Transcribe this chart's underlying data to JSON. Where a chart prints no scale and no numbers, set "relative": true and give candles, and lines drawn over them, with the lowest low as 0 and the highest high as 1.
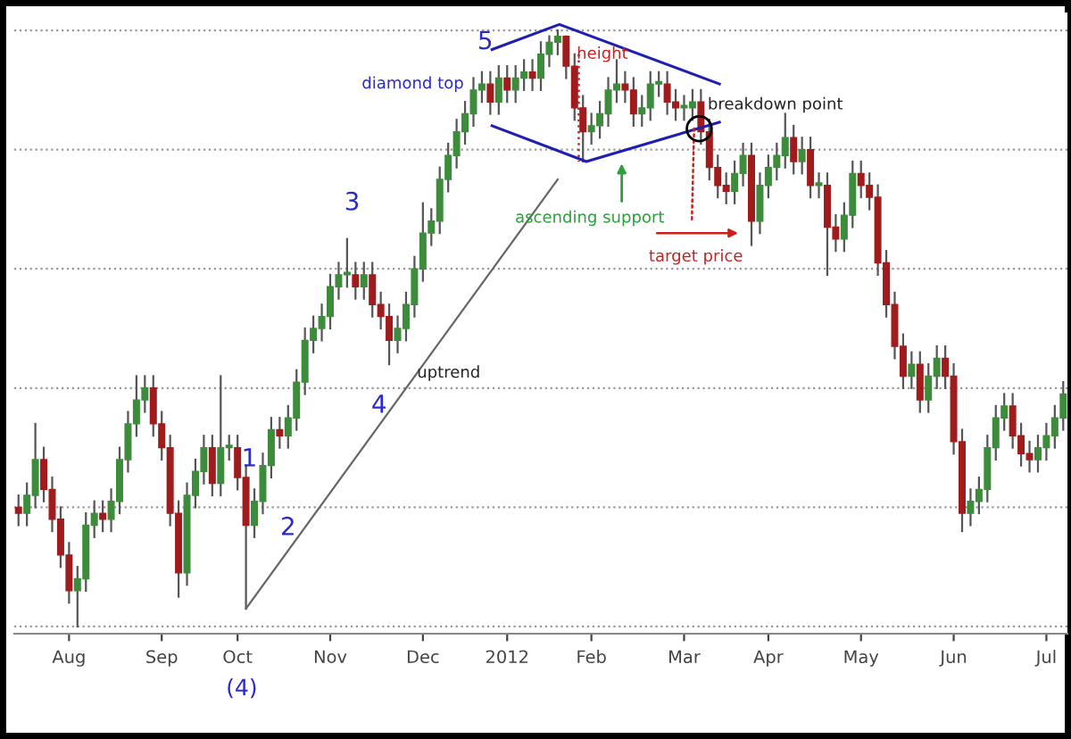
{
  "chart_data": {
    "type": "candlestick",
    "relative": true,
    "grid": "y",
    "tick_labels": "x",
    "categories": [
      null,
      null,
      null,
      null,
      null,
      null,
      "Aug",
      null,
      null,
      null,
      null,
      null,
      null,
      null,
      null,
      null,
      null,
      "Sep",
      null,
      null,
      null,
      null,
      null,
      null,
      null,
      null,
      "Oct",
      null,
      null,
      null,
      null,
      null,
      null,
      null,
      null,
      null,
      null,
      "Nov",
      null,
      null,
      null,
      null,
      null,
      null,
      null,
      null,
      null,
      null,
      "Dec",
      null,
      null,
      null,
      null,
      null,
      null,
      null,
      null,
      null,
      "2012",
      null,
      null,
      null,
      null,
      null,
      null,
      null,
      null,
      null,
      "Feb",
      null,
      null,
      null,
      null,
      null,
      null,
      null,
      null,
      null,
      null,
      "Mar",
      null,
      null,
      null,
      null,
      null,
      null,
      null,
      null,
      null,
      "Apr",
      null,
      null,
      null,
      null,
      null,
      null,
      null,
      null,
      null,
      null,
      "May",
      null,
      null,
      null,
      null,
      null,
      null,
      null,
      null,
      null,
      null,
      "Jun",
      null,
      null,
      null,
      null,
      null,
      null,
      null,
      null,
      null,
      null,
      "Jul",
      null,
      null
    ],
    "ohlc": [
      [
        0.2,
        0.22,
        0.17,
        0.19
      ],
      [
        0.19,
        0.24,
        0.17,
        0.22
      ],
      [
        0.22,
        0.34,
        0.2,
        0.28
      ],
      [
        0.28,
        0.3,
        0.21,
        0.23
      ],
      [
        0.23,
        0.25,
        0.16,
        0.18
      ],
      [
        0.18,
        0.2,
        0.1,
        0.12
      ],
      [
        0.12,
        0.14,
        0.04,
        0.06
      ],
      [
        0.06,
        0.1,
        0,
        0.08
      ],
      [
        0.08,
        0.19,
        0.06,
        0.17
      ],
      [
        0.17,
        0.21,
        0.15,
        0.19
      ],
      [
        0.19,
        0.21,
        0.16,
        0.18
      ],
      [
        0.18,
        0.23,
        0.16,
        0.21
      ],
      [
        0.21,
        0.3,
        0.19,
        0.28
      ],
      [
        0.28,
        0.36,
        0.26,
        0.34
      ],
      [
        0.34,
        0.42,
        0.32,
        0.38
      ],
      [
        0.38,
        0.42,
        0.36,
        0.4
      ],
      [
        0.4,
        0.42,
        0.32,
        0.34
      ],
      [
        0.34,
        0.36,
        0.28,
        0.3
      ],
      [
        0.3,
        0.32,
        0.17,
        0.19
      ],
      [
        0.19,
        0.21,
        0.05,
        0.09
      ],
      [
        0.09,
        0.24,
        0.07,
        0.22
      ],
      [
        0.22,
        0.28,
        0.2,
        0.26
      ],
      [
        0.26,
        0.32,
        0.24,
        0.3
      ],
      [
        0.3,
        0.32,
        0.22,
        0.24
      ],
      [
        0.24,
        0.42,
        0.22,
        0.3
      ],
      [
        0.3,
        0.32,
        0.28,
        0.3
      ],
      [
        0.3,
        0.32,
        0.23,
        0.25
      ],
      [
        0.25,
        0.27,
        0.03,
        0.17
      ],
      [
        0.17,
        0.23,
        0.15,
        0.21
      ],
      [
        0.21,
        0.29,
        0.19,
        0.27
      ],
      [
        0.27,
        0.35,
        0.25,
        0.33
      ],
      [
        0.33,
        0.35,
        0.3,
        0.32
      ],
      [
        0.32,
        0.37,
        0.3,
        0.35
      ],
      [
        0.35,
        0.43,
        0.33,
        0.41
      ],
      [
        0.41,
        0.5,
        0.39,
        0.48
      ],
      [
        0.48,
        0.52,
        0.46,
        0.5
      ],
      [
        0.5,
        0.54,
        0.48,
        0.52
      ],
      [
        0.52,
        0.59,
        0.5,
        0.57
      ],
      [
        0.57,
        0.61,
        0.55,
        0.59
      ],
      [
        0.59,
        0.65,
        0.57,
        0.59
      ],
      [
        0.59,
        0.61,
        0.55,
        0.57
      ],
      [
        0.57,
        0.61,
        0.55,
        0.59
      ],
      [
        0.59,
        0.61,
        0.52,
        0.54
      ],
      [
        0.54,
        0.56,
        0.5,
        0.52
      ],
      [
        0.52,
        0.54,
        0.44,
        0.48
      ],
      [
        0.48,
        0.52,
        0.46,
        0.5
      ],
      [
        0.5,
        0.56,
        0.48,
        0.54
      ],
      [
        0.54,
        0.62,
        0.52,
        0.6
      ],
      [
        0.6,
        0.71,
        0.58,
        0.66
      ],
      [
        0.66,
        0.7,
        0.64,
        0.68
      ],
      [
        0.68,
        0.77,
        0.66,
        0.75
      ],
      [
        0.75,
        0.81,
        0.73,
        0.79
      ],
      [
        0.79,
        0.85,
        0.77,
        0.83
      ],
      [
        0.83,
        0.88,
        0.81,
        0.86
      ],
      [
        0.86,
        0.92,
        0.84,
        0.9
      ],
      [
        0.9,
        0.93,
        0.88,
        0.91
      ],
      [
        0.91,
        0.93,
        0.86,
        0.88
      ],
      [
        0.88,
        0.94,
        0.86,
        0.92
      ],
      [
        0.92,
        0.94,
        0.88,
        0.9
      ],
      [
        0.9,
        0.94,
        0.88,
        0.92
      ],
      [
        0.92,
        0.95,
        0.9,
        0.93
      ],
      [
        0.93,
        0.95,
        0.9,
        0.92
      ],
      [
        0.92,
        0.98,
        0.9,
        0.96
      ],
      [
        0.96,
        0.99,
        0.94,
        0.98
      ],
      [
        0.98,
        1,
        0.96,
        0.99
      ],
      [
        0.99,
        0.99,
        0.92,
        0.94
      ],
      [
        0.94,
        0.96,
        0.85,
        0.87
      ],
      [
        0.87,
        0.89,
        0.78,
        0.83
      ],
      [
        0.83,
        0.86,
        0.81,
        0.84
      ],
      [
        0.84,
        0.88,
        0.82,
        0.86
      ],
      [
        0.86,
        0.92,
        0.84,
        0.9
      ],
      [
        0.9,
        0.95,
        0.88,
        0.91
      ],
      [
        0.91,
        0.93,
        0.88,
        0.9
      ],
      [
        0.9,
        0.92,
        0.84,
        0.86
      ],
      [
        0.86,
        0.89,
        0.84,
        0.87
      ],
      [
        0.87,
        0.93,
        0.85,
        0.91
      ],
      [
        0.91,
        0.93,
        0.89,
        0.91
      ],
      [
        0.91,
        0.93,
        0.86,
        0.88
      ],
      [
        0.88,
        0.9,
        0.85,
        0.87
      ],
      [
        0.87,
        0.89,
        0.85,
        0.87
      ],
      [
        0.87,
        0.9,
        0.85,
        0.88
      ],
      [
        0.88,
        0.9,
        0.81,
        0.83
      ],
      [
        0.83,
        0.85,
        0.75,
        0.77
      ],
      [
        0.77,
        0.79,
        0.72,
        0.74
      ],
      [
        0.74,
        0.76,
        0.71,
        0.73
      ],
      [
        0.73,
        0.78,
        0.71,
        0.76
      ],
      [
        0.76,
        0.81,
        0.74,
        0.79
      ],
      [
        0.79,
        0.81,
        0.64,
        0.68
      ],
      [
        0.68,
        0.76,
        0.66,
        0.74
      ],
      [
        0.74,
        0.79,
        0.72,
        0.77
      ],
      [
        0.77,
        0.81,
        0.75,
        0.79
      ],
      [
        0.79,
        0.86,
        0.77,
        0.82
      ],
      [
        0.82,
        0.84,
        0.76,
        0.78
      ],
      [
        0.78,
        0.82,
        0.76,
        0.8
      ],
      [
        0.8,
        0.82,
        0.72,
        0.74
      ],
      [
        0.74,
        0.76,
        0.72,
        0.74
      ],
      [
        0.74,
        0.76,
        0.59,
        0.67
      ],
      [
        0.67,
        0.69,
        0.63,
        0.65
      ],
      [
        0.65,
        0.71,
        0.63,
        0.69
      ],
      [
        0.69,
        0.78,
        0.67,
        0.76
      ],
      [
        0.76,
        0.78,
        0.72,
        0.74
      ],
      [
        0.74,
        0.76,
        0.7,
        0.72
      ],
      [
        0.72,
        0.74,
        0.59,
        0.61
      ],
      [
        0.61,
        0.63,
        0.52,
        0.54
      ],
      [
        0.54,
        0.56,
        0.45,
        0.47
      ],
      [
        0.47,
        0.49,
        0.4,
        0.42
      ],
      [
        0.42,
        0.46,
        0.4,
        0.44
      ],
      [
        0.44,
        0.46,
        0.36,
        0.38
      ],
      [
        0.38,
        0.44,
        0.36,
        0.42
      ],
      [
        0.42,
        0.47,
        0.4,
        0.45
      ],
      [
        0.45,
        0.47,
        0.4,
        0.42
      ],
      [
        0.42,
        0.44,
        0.29,
        0.31
      ],
      [
        0.31,
        0.33,
        0.16,
        0.19
      ],
      [
        0.19,
        0.23,
        0.17,
        0.21
      ],
      [
        0.21,
        0.25,
        0.19,
        0.23
      ],
      [
        0.23,
        0.32,
        0.21,
        0.3
      ],
      [
        0.3,
        0.37,
        0.28,
        0.35
      ],
      [
        0.35,
        0.39,
        0.33,
        0.37
      ],
      [
        0.37,
        0.39,
        0.3,
        0.32
      ],
      [
        0.32,
        0.34,
        0.27,
        0.29
      ],
      [
        0.29,
        0.31,
        0.26,
        0.28
      ],
      [
        0.28,
        0.32,
        0.26,
        0.3
      ],
      [
        0.3,
        0.34,
        0.28,
        0.32
      ],
      [
        0.32,
        0.37,
        0.3,
        0.35
      ],
      [
        0.35,
        0.41,
        0.33,
        0.39
      ]
    ],
    "colors": [
      "#a01c1c",
      "#3c8c3c",
      "#3c8c3c",
      "#a01c1c",
      "#a01c1c",
      "#a01c1c",
      "#a01c1c",
      "#3c8c3c",
      "#3c8c3c",
      "#3c8c3c",
      "#a01c1c",
      "#3c8c3c",
      "#3c8c3c",
      "#3c8c3c",
      "#3c8c3c",
      "#3c8c3c",
      "#a01c1c",
      "#a01c1c",
      "#a01c1c",
      "#a01c1c",
      "#3c8c3c",
      "#3c8c3c",
      "#3c8c3c",
      "#a01c1c",
      "#3c8c3c",
      "#3c8c3c",
      "#a01c1c",
      "#a01c1c",
      "#3c8c3c",
      "#3c8c3c",
      "#3c8c3c",
      "#a01c1c",
      "#3c8c3c",
      "#3c8c3c",
      "#3c8c3c",
      "#3c8c3c",
      "#3c8c3c",
      "#3c8c3c",
      "#3c8c3c",
      "#3c8c3c",
      "#a01c1c",
      "#3c8c3c",
      "#a01c1c",
      "#a01c1c",
      "#a01c1c",
      "#3c8c3c",
      "#3c8c3c",
      "#3c8c3c",
      "#3c8c3c",
      "#3c8c3c",
      "#3c8c3c",
      "#3c8c3c",
      "#3c8c3c",
      "#3c8c3c",
      "#3c8c3c",
      "#3c8c3c",
      "#a01c1c",
      "#3c8c3c",
      "#a01c1c",
      "#3c8c3c",
      "#3c8c3c",
      "#a01c1c",
      "#3c8c3c",
      "#3c8c3c",
      "#3c8c3c",
      "#a01c1c",
      "#a01c1c",
      "#a01c1c",
      "#3c8c3c",
      "#3c8c3c",
      "#3c8c3c",
      "#3c8c3c",
      "#a01c1c",
      "#a01c1c",
      "#3c8c3c",
      "#3c8c3c",
      "#3c8c3c",
      "#a01c1c",
      "#a01c1c",
      "#3c8c3c",
      "#3c8c3c",
      "#a01c1c",
      "#a01c1c",
      "#a01c1c",
      "#a01c1c",
      "#3c8c3c",
      "#3c8c3c",
      "#a01c1c",
      "#3c8c3c",
      "#3c8c3c",
      "#3c8c3c",
      "#3c8c3c",
      "#a01c1c",
      "#3c8c3c",
      "#a01c1c",
      "#3c8c3c",
      "#a01c1c",
      "#a01c1c",
      "#3c8c3c",
      "#3c8c3c",
      "#a01c1c",
      "#a01c1c",
      "#a01c1c",
      "#a01c1c",
      "#a01c1c",
      "#a01c1c",
      "#3c8c3c",
      "#a01c1c",
      "#3c8c3c",
      "#3c8c3c",
      "#a01c1c",
      "#a01c1c",
      "#a01c1c",
      "#3c8c3c",
      "#3c8c3c",
      "#3c8c3c",
      "#3c8c3c",
      "#3c8c3c",
      "#a01c1c",
      "#a01c1c",
      "#a01c1c",
      "#3c8c3c",
      "#3c8c3c",
      "#3c8c3c",
      "#3c8c3c"
    ],
    "series": [
      {
        "type": "line",
        "color": "#666666",
        "values": [
          null,
          null,
          null,
          null,
          null,
          null,
          null,
          null,
          null,
          null,
          null,
          null,
          null,
          null,
          null,
          null,
          null,
          null,
          null,
          null,
          null,
          null,
          null,
          null,
          null,
          null,
          null,
          0.03,
          null,
          null,
          null,
          null,
          null,
          null,
          null,
          null,
          null,
          null,
          null,
          null,
          null,
          null,
          null,
          null,
          null,
          null,
          null,
          null,
          null,
          null,
          null,
          null,
          null,
          null,
          null,
          null,
          null,
          null,
          null,
          null,
          null,
          null,
          null,
          null,
          0.75,
          null,
          null,
          null,
          null,
          null,
          null,
          null,
          null,
          null,
          null,
          null,
          null,
          null,
          null,
          null,
          null,
          null,
          null,
          null,
          null,
          null,
          null,
          null,
          null,
          null,
          null,
          null,
          null,
          null,
          null,
          null,
          null,
          null,
          null,
          null,
          null,
          null,
          null,
          null,
          null,
          null,
          null,
          null,
          null,
          null,
          null,
          null,
          null,
          null,
          null,
          null,
          null,
          null,
          null,
          null,
          null,
          null,
          null,
          null,
          null
        ]
      }
    ],
    "annotations": [
      "5",
      "diamond top",
      {
        "text": "height",
        "y": 0.87
      },
      "breakdown point",
      "ascending support",
      "target price",
      "uptrend",
      "3",
      "1",
      "2",
      "4",
      "(4)"
    ]
  }
}
